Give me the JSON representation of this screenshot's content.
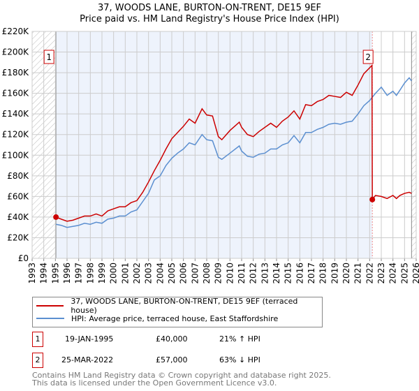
{
  "title_line1": "37, WOODS LANE, BURTON-ON-TRENT, DE15 9EF",
  "title_line2": "Price paid vs. HM Land Registry's House Price Index (HPI)",
  "chart_data": {
    "type": "line",
    "title": "Price paid vs. HM Land Registry's House Price Index (HPI)",
    "xlim": [
      1993,
      2026
    ],
    "ylim": [
      0,
      220000
    ],
    "x_ticks": [
      "1993",
      "1994",
      "1995",
      "1996",
      "1997",
      "1998",
      "1999",
      "2000",
      "2001",
      "2002",
      "2003",
      "2004",
      "2005",
      "2006",
      "2007",
      "2008",
      "2009",
      "2010",
      "2011",
      "2012",
      "2013",
      "2014",
      "2015",
      "2016",
      "2017",
      "2018",
      "2019",
      "2020",
      "2021",
      "2022",
      "2023",
      "2024",
      "2025",
      "2026"
    ],
    "y_ticks": [
      {
        "v": 0,
        "label": "£0"
      },
      {
        "v": 20000,
        "label": "£20K"
      },
      {
        "v": 40000,
        "label": "£40K"
      },
      {
        "v": 60000,
        "label": "£60K"
      },
      {
        "v": 80000,
        "label": "£80K"
      },
      {
        "v": 100000,
        "label": "£100K"
      },
      {
        "v": 120000,
        "label": "£120K"
      },
      {
        "v": 140000,
        "label": "£140K"
      },
      {
        "v": 160000,
        "label": "£160K"
      },
      {
        "v": 180000,
        "label": "£180K"
      },
      {
        "v": 200000,
        "label": "£200K"
      },
      {
        "v": 220000,
        "label": "£220K"
      }
    ],
    "grid": true,
    "shaded_range": [
      1995.05,
      2022.23
    ],
    "hatched_ranges": [
      [
        1993,
        1995.05
      ],
      [
        2025.6,
        2026
      ]
    ],
    "series": [
      {
        "name": "37, WOODS LANE, BURTON-ON-TRENT, DE15 9EF (terraced house)",
        "color": "#cc0000",
        "x": [
          1995.05,
          1995.5,
          1996,
          1996.5,
          1997,
          1997.5,
          1998,
          1998.5,
          1999,
          1999.5,
          2000,
          2000.5,
          2001,
          2001.5,
          2002,
          2002.5,
          2003,
          2003.5,
          2004,
          2004.5,
          2005,
          2005.5,
          2006,
          2006.5,
          2007,
          2007.6,
          2008,
          2008.5,
          2009,
          2009.3,
          2010,
          2010.8,
          2011,
          2011.5,
          2012,
          2012.5,
          2013,
          2013.5,
          2014,
          2014.5,
          2015,
          2015.5,
          2016,
          2016.5,
          2017,
          2017.5,
          2018,
          2018.5,
          2019,
          2019.5,
          2020,
          2020.5,
          2021,
          2021.5,
          2022.2,
          2022.23,
          2022.5,
          2023,
          2023.5,
          2024,
          2024.3,
          2024.6,
          2025,
          2025.4,
          2025.6
        ],
        "y": [
          40000,
          38000,
          36000,
          37000,
          39000,
          41000,
          41000,
          43000,
          41000,
          46000,
          48000,
          50000,
          50000,
          54000,
          56000,
          64000,
          74000,
          85000,
          95000,
          106000,
          116000,
          122000,
          128000,
          135000,
          131000,
          145000,
          139000,
          138000,
          118000,
          115000,
          124000,
          132000,
          127000,
          120000,
          118000,
          123000,
          127000,
          131000,
          127000,
          133000,
          137000,
          143000,
          135000,
          149000,
          148000,
          152000,
          154000,
          158000,
          157000,
          156000,
          161000,
          158000,
          168000,
          179000,
          187000,
          57000,
          61000,
          60000,
          58000,
          61000,
          58000,
          61000,
          63000,
          64000,
          63000
        ]
      },
      {
        "name": "HPI: Average price, terraced house, East Staffordshire",
        "color": "#5b8fd0",
        "x": [
          1995.05,
          1995.5,
          1996,
          1996.5,
          1997,
          1997.5,
          1998,
          1998.5,
          1999,
          1999.5,
          2000,
          2000.5,
          2001,
          2001.5,
          2002,
          2002.5,
          2003,
          2003.5,
          2004,
          2004.5,
          2005,
          2005.5,
          2006,
          2006.5,
          2007,
          2007.6,
          2008,
          2008.5,
          2009,
          2009.3,
          2010,
          2010.8,
          2011,
          2011.5,
          2012,
          2012.5,
          2013,
          2013.5,
          2014,
          2014.5,
          2015,
          2015.5,
          2016,
          2016.5,
          2017,
          2017.5,
          2018,
          2018.5,
          2019,
          2019.5,
          2020,
          2020.5,
          2021,
          2021.5,
          2022,
          2022.5,
          2023,
          2023.5,
          2024,
          2024.3,
          2024.6,
          2025,
          2025.4,
          2025.6
        ],
        "y": [
          33000,
          32000,
          30000,
          31000,
          32000,
          34000,
          33000,
          35000,
          34000,
          38000,
          39000,
          41000,
          41000,
          45000,
          47000,
          55000,
          63000,
          76000,
          80000,
          90000,
          97000,
          102000,
          106000,
          112000,
          110000,
          120000,
          115000,
          114000,
          98000,
          96000,
          102000,
          109000,
          104000,
          99000,
          98000,
          101000,
          102000,
          106000,
          106000,
          110000,
          112000,
          119000,
          112000,
          122000,
          122000,
          125000,
          127000,
          130000,
          131000,
          130000,
          132000,
          133000,
          140000,
          148000,
          153000,
          160000,
          166000,
          158000,
          162000,
          158000,
          163000,
          170000,
          175000,
          172000
        ]
      }
    ],
    "annotations": [
      {
        "label": "1",
        "x": 1995.05,
        "y": 40000
      },
      {
        "label": "2",
        "x": 2022.23,
        "y": 57000
      }
    ]
  },
  "legend": {
    "items": [
      {
        "label": "37, WOODS LANE, BURTON-ON-TRENT, DE15 9EF (terraced house)",
        "color": "#cc0000"
      },
      {
        "label": "HPI: Average price, terraced house, East Staffordshire",
        "color": "#5b8fd0"
      }
    ]
  },
  "transactions": [
    {
      "num": "1",
      "date": "19-JAN-1995",
      "price": "£40,000",
      "hpi": "21% ↑ HPI"
    },
    {
      "num": "2",
      "date": "25-MAR-2022",
      "price": "£57,000",
      "hpi": "63% ↓ HPI"
    }
  ],
  "footer": {
    "line1": "Contains HM Land Registry data © Crown copyright and database right 2025.",
    "line2": "This data is licensed under the Open Government Licence v3.0."
  }
}
